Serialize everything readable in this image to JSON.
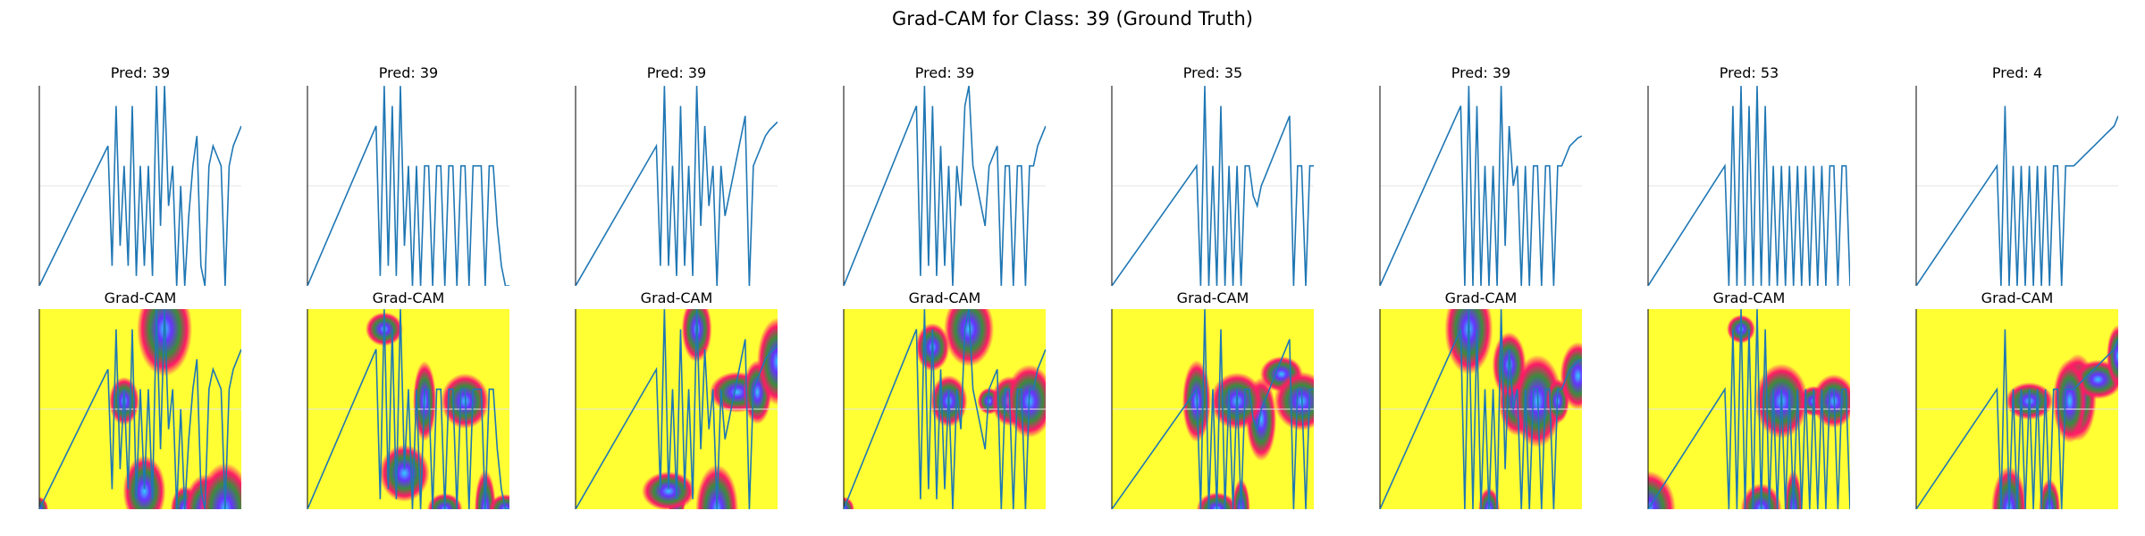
{
  "figure": {
    "title": "Grad-CAM for Class: 39 (Ground Truth)"
  },
  "colors": {
    "signal": "#1f77b4",
    "heat_cold": "#ffff33",
    "heat_warm": "#ff1a66",
    "heat_mid": "#3d8a3d",
    "heat_hot": "#6633ff",
    "heat_peak": "#33ccff",
    "grid": "#e6e6e6",
    "axis": "#000000"
  },
  "chart_data": {
    "type": "line",
    "panels": [
      {
        "pred_title": "Pred: 39",
        "cam_title": "Grad-CAM",
        "x": [
          0,
          0.34,
          0.36,
          0.38,
          0.4,
          0.42,
          0.44,
          0.46,
          0.48,
          0.5,
          0.52,
          0.54,
          0.56,
          0.58,
          0.6,
          0.62,
          0.64,
          0.66,
          0.68,
          0.7,
          0.72,
          0.74,
          0.76,
          0.78,
          0.8,
          0.82,
          0.84,
          0.86,
          0.88,
          0.9,
          0.92,
          0.94,
          0.96,
          0.98,
          1.0
        ],
        "y": [
          0,
          0.7,
          0.1,
          0.9,
          0.2,
          0.6,
          0.1,
          0.9,
          0.05,
          0.6,
          0.1,
          0.6,
          0.05,
          1.0,
          0.3,
          1.0,
          0.4,
          0.6,
          0.0,
          0.5,
          0.0,
          0.35,
          0.6,
          0.75,
          0.1,
          0.0,
          0.6,
          0.7,
          0.65,
          0.6,
          0.0,
          0.6,
          0.7,
          0.75,
          0.8
        ]
      },
      {
        "pred_title": "Pred: 39",
        "cam_title": "Grad-CAM",
        "x": [
          0,
          0.34,
          0.36,
          0.38,
          0.4,
          0.42,
          0.44,
          0.46,
          0.48,
          0.5,
          0.52,
          0.54,
          0.56,
          0.58,
          0.6,
          0.62,
          0.64,
          0.66,
          0.68,
          0.7,
          0.72,
          0.74,
          0.76,
          0.78,
          0.8,
          0.82,
          0.84,
          0.86,
          0.88,
          0.9,
          0.92,
          0.94,
          0.96,
          0.98,
          1.0
        ],
        "y": [
          0,
          0.8,
          0.05,
          1.0,
          0.1,
          0.9,
          0.05,
          1.0,
          0.2,
          0.6,
          0.0,
          0.6,
          0.0,
          0.6,
          0.6,
          0.0,
          0.6,
          0.6,
          0.0,
          0.6,
          0.6,
          0.0,
          0.6,
          0.6,
          0.0,
          0.6,
          0.6,
          0.6,
          0.0,
          0.6,
          0.6,
          0.3,
          0.1,
          0.0,
          0.0
        ]
      },
      {
        "pred_title": "Pred: 39",
        "cam_title": "Grad-CAM",
        "x": [
          0,
          0.4,
          0.42,
          0.44,
          0.46,
          0.48,
          0.5,
          0.52,
          0.54,
          0.56,
          0.58,
          0.6,
          0.62,
          0.64,
          0.66,
          0.68,
          0.7,
          0.72,
          0.74,
          0.76,
          0.78,
          0.8,
          0.82,
          0.84,
          0.86,
          0.88,
          0.9,
          0.92,
          0.94,
          0.96,
          0.98,
          1.0
        ],
        "y": [
          0,
          0.7,
          0.1,
          1.0,
          0.1,
          0.6,
          0.05,
          0.9,
          0.1,
          0.6,
          0.05,
          1.0,
          0.3,
          0.8,
          0.4,
          0.6,
          0.0,
          0.6,
          0.35,
          0.45,
          0.55,
          0.65,
          0.75,
          0.85,
          0.0,
          0.6,
          0.65,
          0.7,
          0.75,
          0.78,
          0.8,
          0.82
        ]
      },
      {
        "pred_title": "Pred: 39",
        "cam_title": "Grad-CAM",
        "x": [
          0,
          0.36,
          0.38,
          0.4,
          0.42,
          0.44,
          0.46,
          0.48,
          0.5,
          0.52,
          0.54,
          0.56,
          0.58,
          0.6,
          0.62,
          0.64,
          0.66,
          0.68,
          0.7,
          0.72,
          0.74,
          0.76,
          0.78,
          0.8,
          0.82,
          0.84,
          0.86,
          0.88,
          0.9,
          0.92,
          0.94,
          0.96,
          0.98,
          1.0
        ],
        "y": [
          0,
          0.9,
          0.05,
          1.0,
          0.1,
          0.9,
          0.05,
          0.7,
          0.1,
          0.6,
          0.0,
          0.6,
          0.4,
          0.9,
          1.0,
          0.6,
          0.5,
          0.4,
          0.3,
          0.6,
          0.65,
          0.7,
          0.0,
          0.6,
          0.6,
          0.0,
          0.6,
          0.6,
          0.0,
          0.6,
          0.6,
          0.7,
          0.75,
          0.8
        ]
      },
      {
        "pred_title": "Pred: 35",
        "cam_title": "Grad-CAM",
        "x": [
          0,
          0.42,
          0.44,
          0.46,
          0.48,
          0.5,
          0.52,
          0.54,
          0.56,
          0.58,
          0.6,
          0.62,
          0.64,
          0.66,
          0.68,
          0.7,
          0.72,
          0.74,
          0.76,
          0.78,
          0.8,
          0.82,
          0.84,
          0.86,
          0.88,
          0.9,
          0.92,
          0.94,
          0.96,
          0.98,
          1.0
        ],
        "y": [
          0,
          0.6,
          0.0,
          1.0,
          0.0,
          0.6,
          0.0,
          0.9,
          0.0,
          0.6,
          0.0,
          0.6,
          0.0,
          0.6,
          0.6,
          0.45,
          0.4,
          0.5,
          0.55,
          0.6,
          0.65,
          0.7,
          0.75,
          0.8,
          0.85,
          0.0,
          0.6,
          0.6,
          0.0,
          0.6,
          0.6
        ]
      },
      {
        "pred_title": "Pred: 39",
        "cam_title": "Grad-CAM",
        "x": [
          0,
          0.4,
          0.42,
          0.44,
          0.46,
          0.48,
          0.5,
          0.52,
          0.54,
          0.56,
          0.58,
          0.6,
          0.62,
          0.64,
          0.66,
          0.68,
          0.7,
          0.72,
          0.74,
          0.76,
          0.78,
          0.8,
          0.82,
          0.84,
          0.86,
          0.88,
          0.9,
          0.92,
          0.94,
          0.96,
          0.98,
          1.0
        ],
        "y": [
          0,
          0.9,
          0.0,
          1.0,
          0.0,
          0.9,
          0.0,
          0.6,
          0.0,
          0.6,
          0.0,
          1.0,
          0.2,
          0.8,
          0.5,
          0.6,
          0.0,
          0.6,
          0.0,
          0.6,
          0.6,
          0.0,
          0.6,
          0.6,
          0.0,
          0.6,
          0.6,
          0.65,
          0.7,
          0.72,
          0.74,
          0.75
        ]
      },
      {
        "pred_title": "Pred: 53",
        "cam_title": "Grad-CAM",
        "x": [
          0,
          0.38,
          0.4,
          0.42,
          0.44,
          0.46,
          0.48,
          0.5,
          0.52,
          0.54,
          0.56,
          0.58,
          0.6,
          0.62,
          0.64,
          0.66,
          0.68,
          0.7,
          0.72,
          0.74,
          0.76,
          0.78,
          0.8,
          0.82,
          0.84,
          0.86,
          0.88,
          0.9,
          0.92,
          0.94,
          0.96,
          0.98,
          1.0
        ],
        "y": [
          0,
          0.6,
          0.0,
          0.9,
          0.0,
          1.0,
          0.0,
          0.9,
          0.0,
          1.0,
          0.0,
          0.9,
          0.0,
          0.6,
          0.0,
          0.6,
          0.0,
          0.6,
          0.0,
          0.6,
          0.0,
          0.6,
          0.0,
          0.6,
          0.0,
          0.6,
          0.0,
          0.6,
          0.6,
          0.0,
          0.6,
          0.6,
          0.0
        ]
      },
      {
        "pred_title": "Pred: 4",
        "cam_title": "Grad-CAM",
        "x": [
          0,
          0.4,
          0.42,
          0.44,
          0.46,
          0.48,
          0.5,
          0.52,
          0.54,
          0.56,
          0.58,
          0.6,
          0.62,
          0.64,
          0.66,
          0.68,
          0.7,
          0.72,
          0.74,
          0.76,
          0.78,
          0.8,
          0.82,
          0.84,
          0.86,
          0.88,
          0.9,
          0.92,
          0.94,
          0.96,
          0.98,
          1.0
        ],
        "y": [
          0,
          0.6,
          0.0,
          0.9,
          0.0,
          0.6,
          0.0,
          0.6,
          0.0,
          0.6,
          0.0,
          0.6,
          0.0,
          0.6,
          0.0,
          0.6,
          0.6,
          0.0,
          0.6,
          0.6,
          0.6,
          0.62,
          0.64,
          0.66,
          0.68,
          0.7,
          0.72,
          0.74,
          0.76,
          0.78,
          0.8,
          0.85
        ]
      }
    ]
  }
}
